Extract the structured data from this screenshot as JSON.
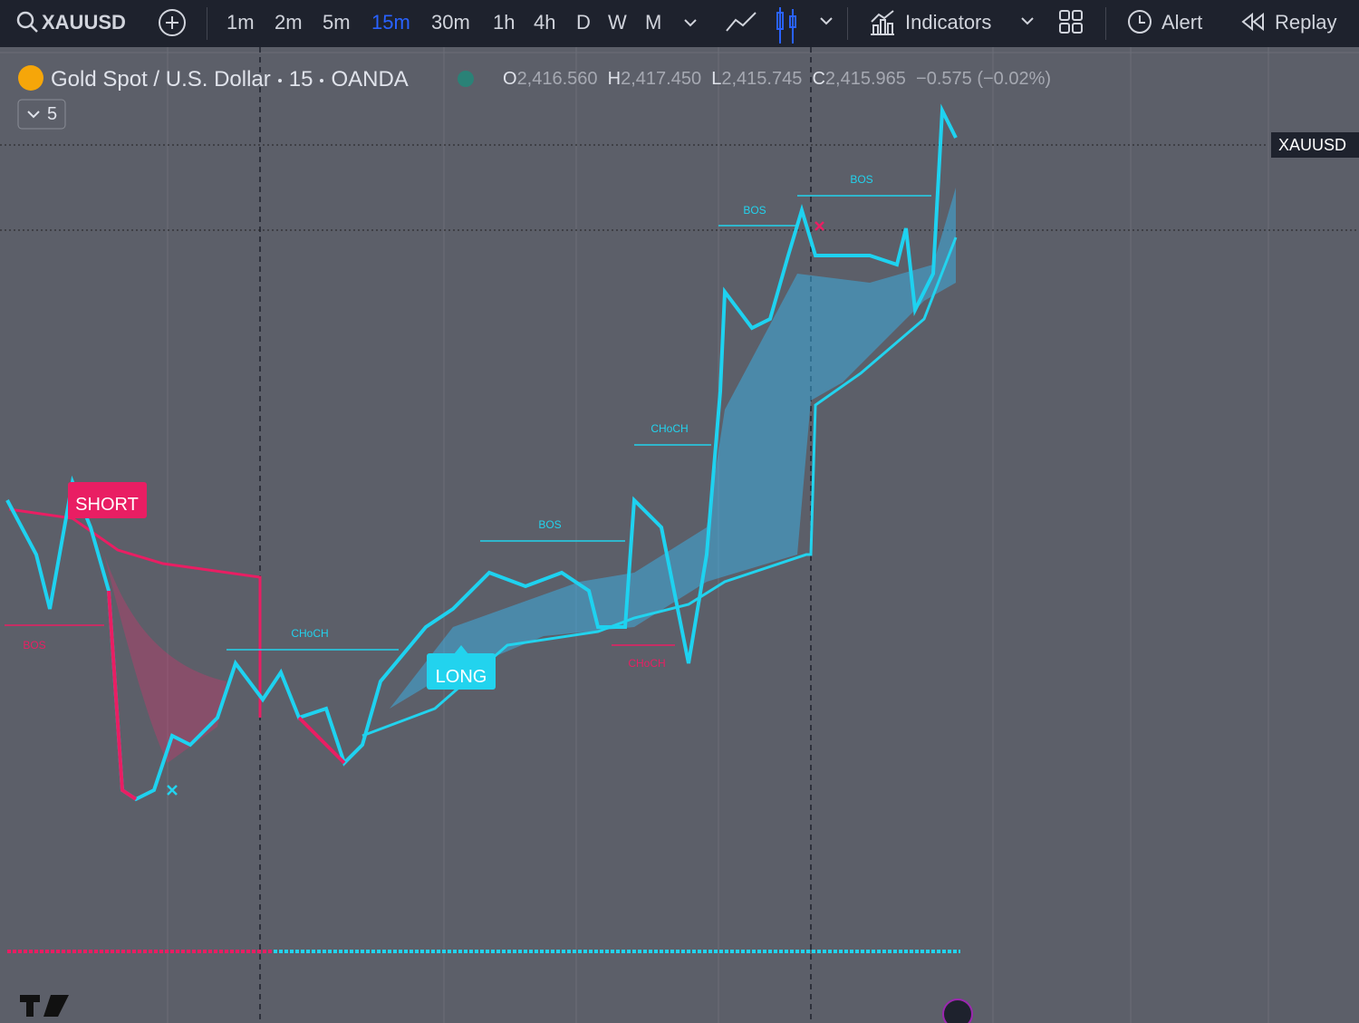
{
  "toolbar": {
    "symbol": "XAUUSD",
    "intervals": [
      "1m",
      "2m",
      "5m",
      "15m",
      "30m",
      "1h",
      "4h",
      "D",
      "W",
      "M"
    ],
    "indicators": "Indicators",
    "alert": "Alert",
    "replay": "Replay"
  },
  "legend": {
    "title": "Gold Spot / U.S. Dollar",
    "interval": "15",
    "source": "OANDA",
    "ohlc": [
      {
        "key": "O",
        "value": "2,416.560"
      },
      {
        "key": "H",
        "value": "2,417.450"
      },
      {
        "key": "L",
        "value": "2,415.745"
      },
      {
        "key": "C",
        "value": "2,415.965"
      }
    ],
    "change": "−0.575 (−0.02%)",
    "indicator_count": "5"
  },
  "price_label": "XAUUSD",
  "annotations": [
    "SHORT",
    "LONG",
    "CHoCH",
    "BOS",
    "CHoCH",
    "BOS",
    "BOS",
    "BOS",
    "CHoCH"
  ]
}
